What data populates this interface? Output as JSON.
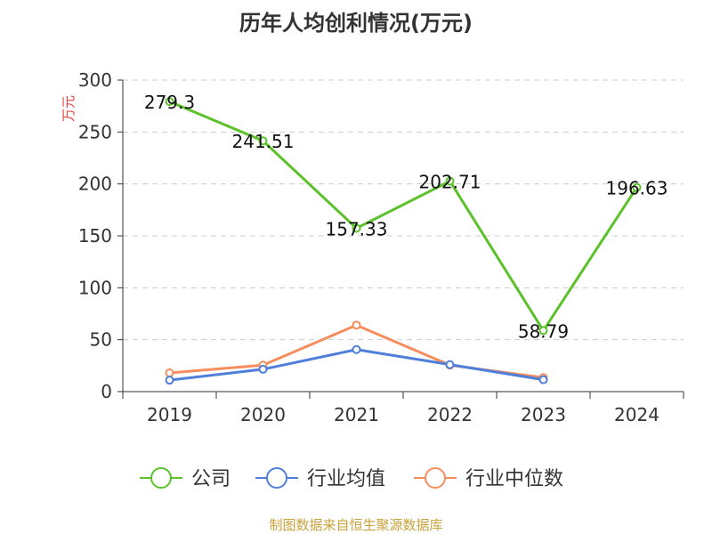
{
  "chart_data": {
    "type": "line",
    "title": "历年人均创利情况(万元)",
    "ylabel": "万元",
    "xlabel": "",
    "ylim": [
      0,
      300
    ],
    "yticks": [
      0,
      50,
      100,
      150,
      200,
      250,
      300
    ],
    "categories": [
      "2019",
      "2020",
      "2021",
      "2022",
      "2023",
      "2024"
    ],
    "grid": true,
    "legend_position": "bottom",
    "series": [
      {
        "name": "公司",
        "color": "#5cc12b",
        "values": [
          279.3,
          241.51,
          157.33,
          202.71,
          58.79,
          196.63
        ],
        "labels": [
          "279.3",
          "241.51",
          "157.33",
          "202.71",
          "58.79",
          "196.63"
        ]
      },
      {
        "name": "行业均值",
        "color": "#4f7fd9",
        "values": [
          11,
          21.5,
          40.5,
          26,
          11.5,
          null
        ]
      },
      {
        "name": "行业中位数",
        "color": "#f58d5e",
        "values": [
          18,
          25.5,
          64,
          25.5,
          13.5,
          null
        ]
      }
    ]
  },
  "source": "制图数据来自恒生聚源数据库"
}
